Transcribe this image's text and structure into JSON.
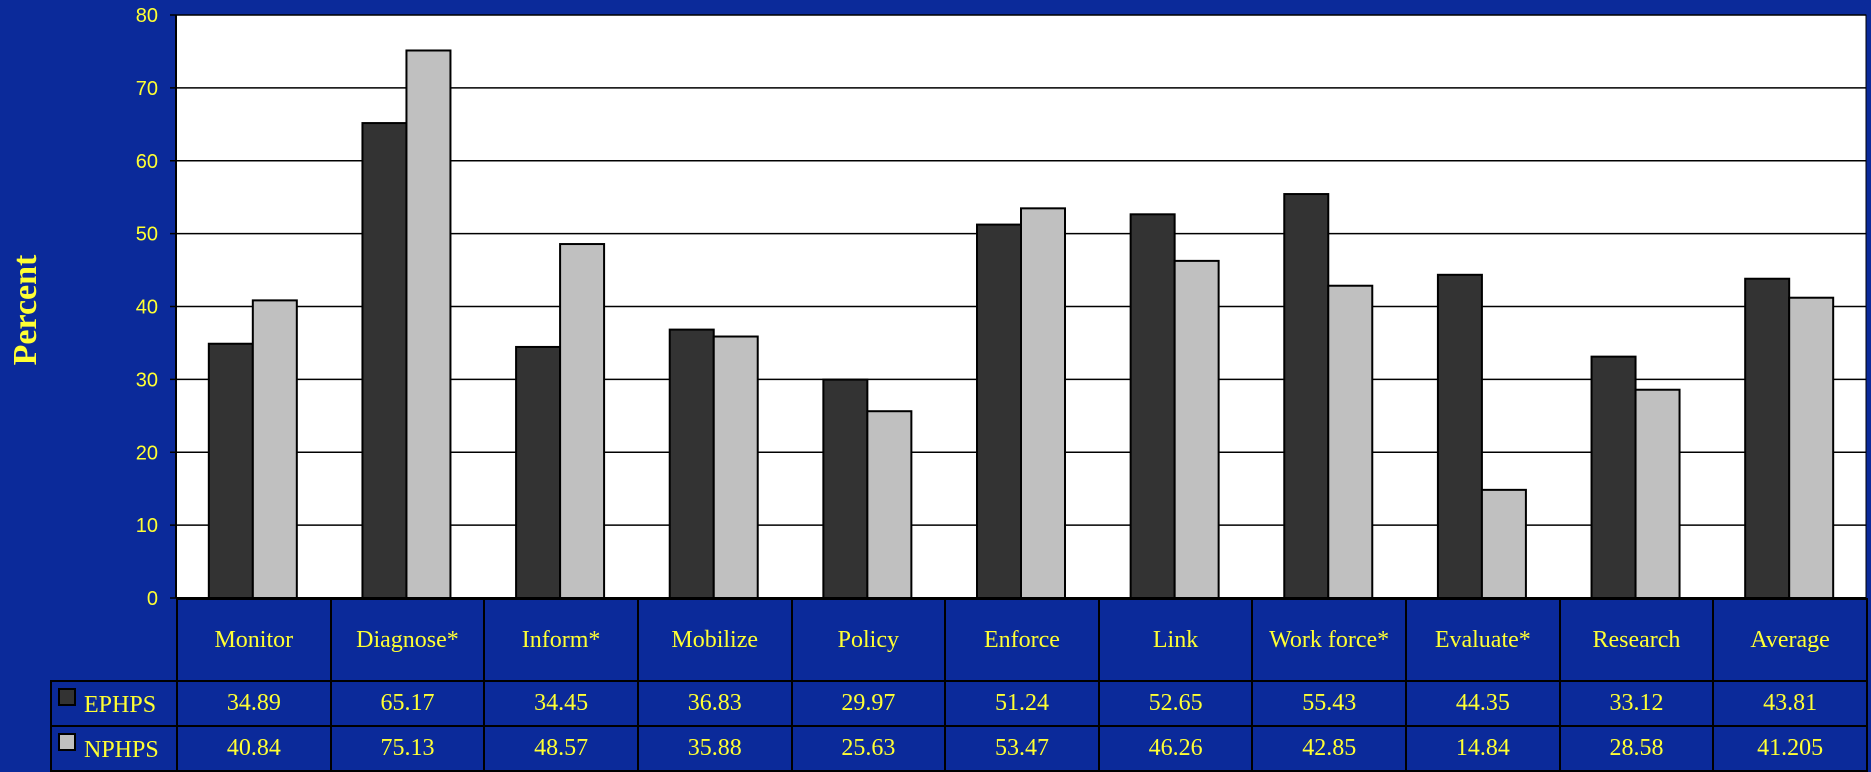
{
  "chart_data": {
    "type": "bar",
    "ylabel": "Percent",
    "ylim": [
      0,
      80
    ],
    "yticks": [
      0,
      10,
      20,
      30,
      40,
      50,
      60,
      70,
      80
    ],
    "grid": true,
    "categories": [
      "Monitor",
      "Diagnose*",
      "Inform*",
      "Mobilize",
      "Policy",
      "Enforce",
      "Link",
      "Work force*",
      "Evaluate*",
      "Research",
      "Average"
    ],
    "series": [
      {
        "name": "EPHPS",
        "color": "#333333",
        "values": [
          34.89,
          65.17,
          34.45,
          36.83,
          29.97,
          51.24,
          52.65,
          55.43,
          44.35,
          33.12,
          43.81
        ],
        "labels": [
          "34.89",
          "65.17",
          "34.45",
          "36.83",
          "29.97",
          "51.24",
          "52.65",
          "55.43",
          "44.35",
          "33.12",
          "43.81"
        ]
      },
      {
        "name": "NPHPS",
        "color": "#c0c0c0",
        "values": [
          40.84,
          75.13,
          48.57,
          35.88,
          25.63,
          53.47,
          46.26,
          42.85,
          14.84,
          28.58,
          41.205
        ],
        "labels": [
          "40.84",
          "75.13",
          "48.57",
          "35.88",
          "25.63",
          "53.47",
          "46.26",
          "42.85",
          "14.84",
          "28.58",
          "41.205"
        ]
      }
    ],
    "legend": "data table below chart"
  },
  "colors": {
    "background": "#0b2a9a",
    "plot_area": "#ffffff",
    "text": "#ffff33"
  }
}
